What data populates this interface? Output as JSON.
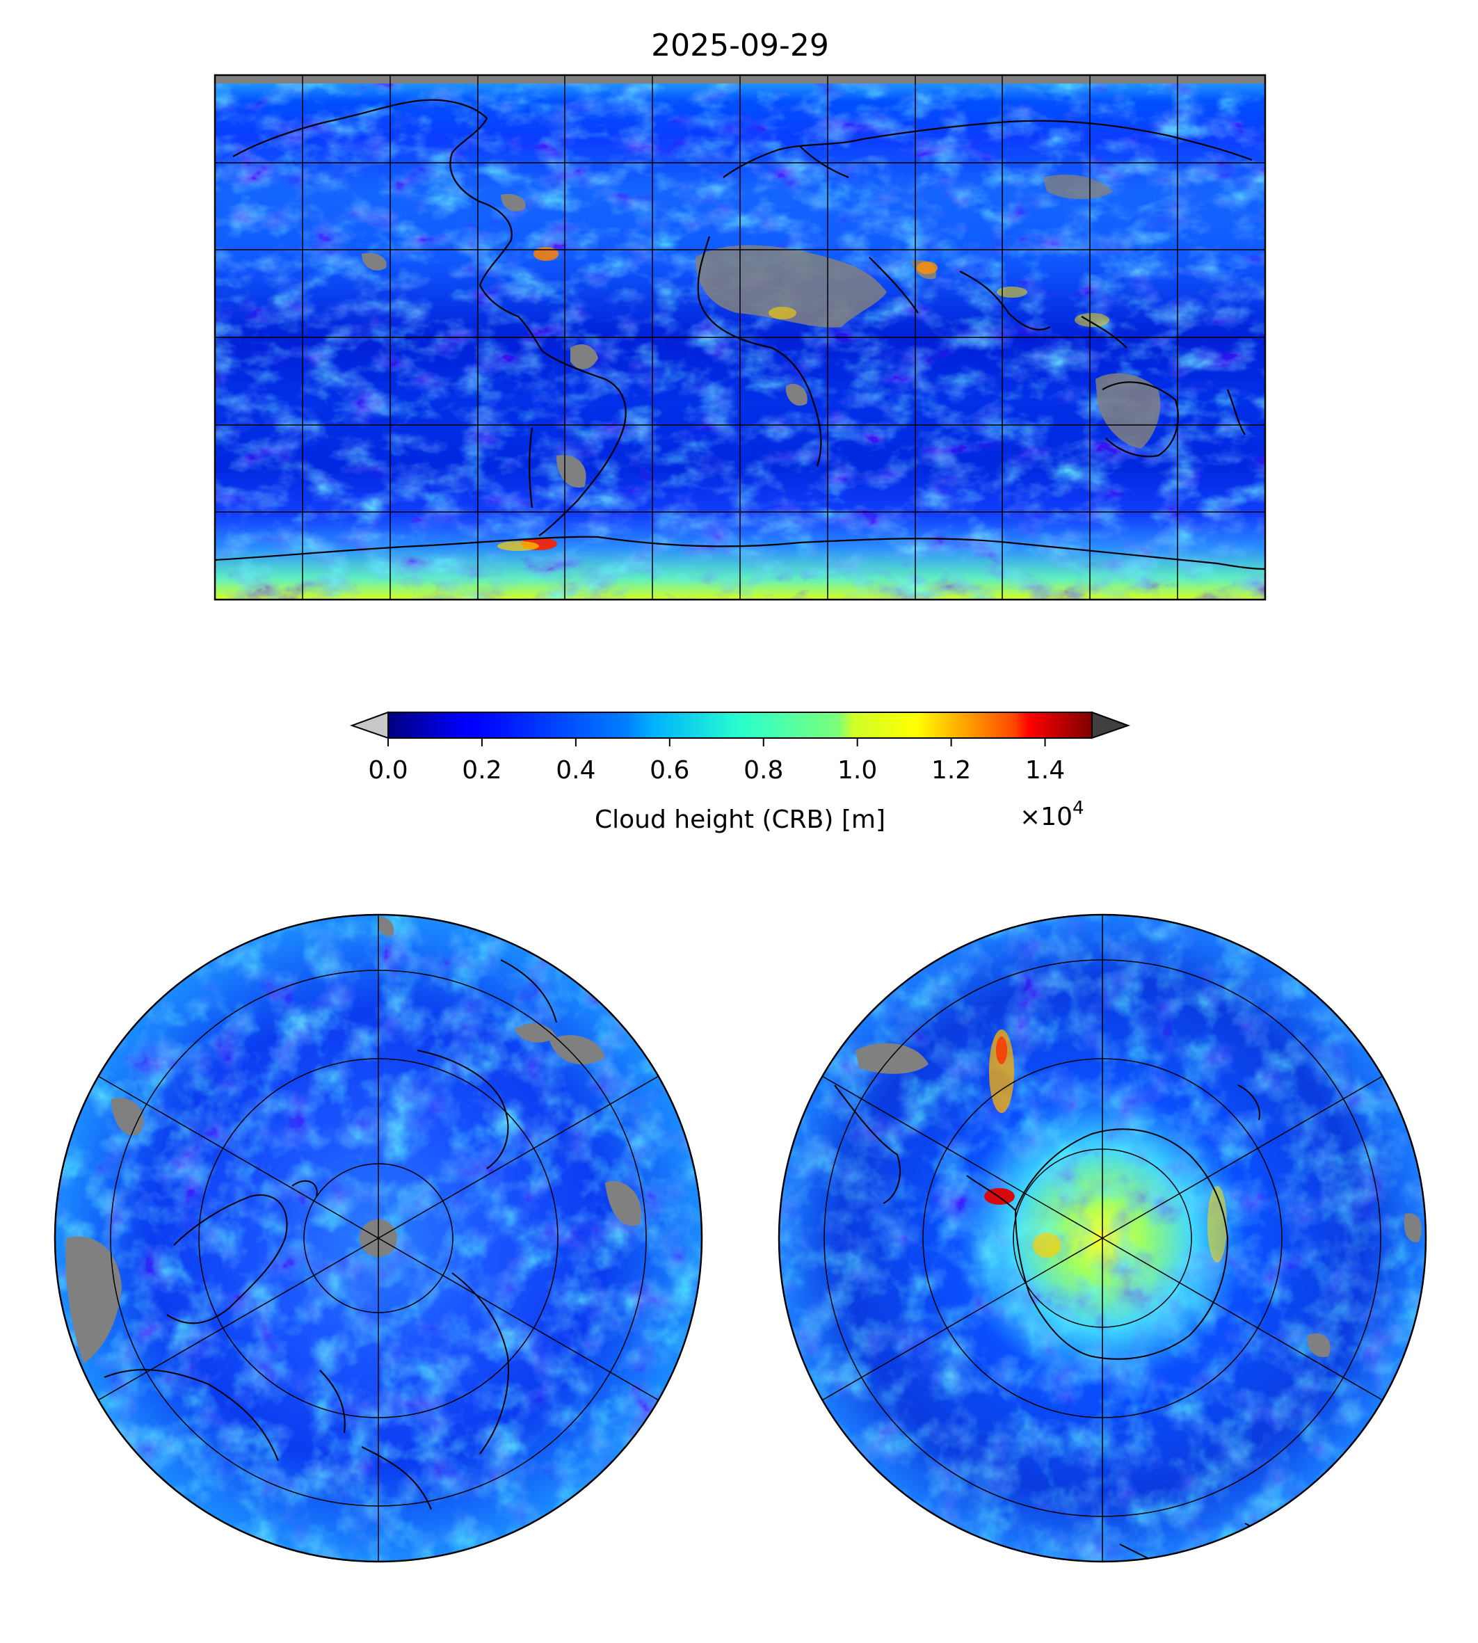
{
  "title": "2025-09-29",
  "colorbar": {
    "label": "Cloud height (CRB) [m]",
    "ticks": [
      "0.0",
      "0.2",
      "0.4",
      "0.6",
      "0.8",
      "1.0",
      "1.2",
      "1.4"
    ],
    "tick_values": [
      0.0,
      0.2,
      0.4,
      0.6,
      0.8,
      1.0,
      1.2,
      1.4
    ],
    "range": [
      0.0,
      1.5
    ],
    "offset_base": "×10",
    "offset_exp": "4",
    "colormap": "jet",
    "under_color": "#c8c8c8",
    "over_color": "#404040"
  },
  "maps": {
    "global": {
      "projection": "equirectangular",
      "lon_range": [
        -180,
        180
      ],
      "lat_range": [
        -90,
        90
      ],
      "gridline_step_deg": 30
    },
    "north_polar": {
      "projection": "north-polar-stereographic",
      "gridline_step_deg": 30
    },
    "south_polar": {
      "projection": "south-polar-stereographic",
      "gridline_step_deg": 30
    }
  },
  "missing_data_color": "#808080"
}
